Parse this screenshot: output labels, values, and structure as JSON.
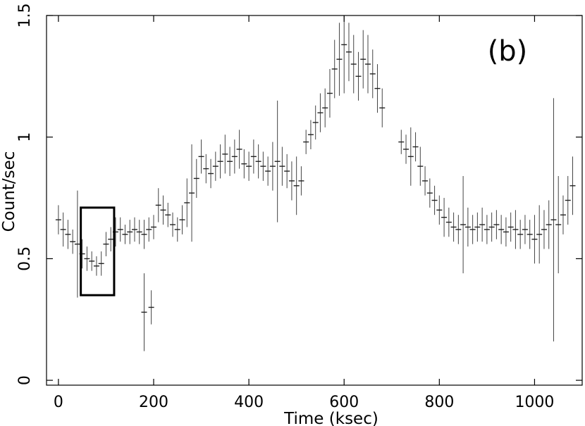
{
  "chart_data": {
    "type": "scatter",
    "xlabel": "Time (ksec)",
    "ylabel": "Count/sec",
    "panel_label": "(b)",
    "xlim": [
      -25,
      1100
    ],
    "ylim": [
      -0.02,
      1.5
    ],
    "x_ticks": [
      0,
      200,
      400,
      600,
      800,
      1000
    ],
    "x_tick_labels": [
      "0",
      "200",
      "400",
      "600",
      "800",
      "1000"
    ],
    "y_ticks": [
      0,
      0.5,
      1,
      1.5
    ],
    "y_tick_labels": [
      "0",
      "0.5",
      "1",
      "1.5"
    ],
    "grid": false,
    "legend": "none",
    "highlight_box": {
      "x": [
        47,
        117
      ],
      "y": [
        0.35,
        0.71
      ]
    },
    "series": [
      {
        "x": [
          0,
          10,
          20,
          30,
          40,
          50,
          60,
          70,
          80,
          90,
          100,
          110,
          120,
          130,
          140,
          150,
          160,
          170,
          180,
          190,
          200,
          210,
          220,
          230,
          240,
          250,
          260,
          270,
          280,
          290,
          300,
          310,
          320,
          330,
          340,
          350,
          360,
          370,
          380,
          390,
          400,
          410,
          420,
          430,
          440,
          450,
          460,
          470,
          480,
          490,
          500,
          510,
          520,
          530,
          540,
          550,
          560,
          570,
          580,
          590,
          600,
          610,
          620,
          630,
          640,
          650,
          660,
          670,
          680,
          720,
          730,
          740,
          750,
          760,
          770,
          780,
          790,
          800,
          810,
          820,
          830,
          840,
          850,
          860,
          870,
          880,
          890,
          900,
          910,
          920,
          930,
          940,
          950,
          960,
          970,
          980,
          990,
          1000,
          1010,
          1020,
          1030,
          1040,
          1050,
          1060,
          1070,
          1080,
          180,
          195
        ],
        "y": [
          0.66,
          0.62,
          0.6,
          0.57,
          0.56,
          0.52,
          0.5,
          0.49,
          0.47,
          0.48,
          0.56,
          0.58,
          0.61,
          0.62,
          0.6,
          0.61,
          0.62,
          0.61,
          0.6,
          0.62,
          0.63,
          0.72,
          0.7,
          0.68,
          0.64,
          0.62,
          0.66,
          0.73,
          0.77,
          0.83,
          0.92,
          0.87,
          0.85,
          0.88,
          0.9,
          0.93,
          0.9,
          0.92,
          0.95,
          0.89,
          0.88,
          0.92,
          0.9,
          0.88,
          0.86,
          0.88,
          0.9,
          0.88,
          0.86,
          0.82,
          0.8,
          0.82,
          0.98,
          1.01,
          1.06,
          1.1,
          1.12,
          1.18,
          1.28,
          1.32,
          1.38,
          1.35,
          1.3,
          1.25,
          1.32,
          1.3,
          1.26,
          1.2,
          1.12,
          0.98,
          0.95,
          0.92,
          0.96,
          0.88,
          0.82,
          0.77,
          0.74,
          0.7,
          0.67,
          0.65,
          0.63,
          0.62,
          0.64,
          0.63,
          0.62,
          0.63,
          0.64,
          0.62,
          0.63,
          0.64,
          0.62,
          0.61,
          0.63,
          0.62,
          0.6,
          0.62,
          0.6,
          0.58,
          0.6,
          0.62,
          0.64,
          0.66,
          0.64,
          0.68,
          0.74,
          0.8,
          0.28,
          0.3
        ],
        "yerr": [
          0.06,
          0.07,
          0.06,
          0.05,
          0.22,
          0.06,
          0.05,
          0.04,
          0.04,
          0.05,
          0.05,
          0.05,
          0.06,
          0.05,
          0.04,
          0.05,
          0.05,
          0.05,
          0.06,
          0.05,
          0.05,
          0.07,
          0.06,
          0.05,
          0.05,
          0.05,
          0.06,
          0.1,
          0.2,
          0.08,
          0.07,
          0.06,
          0.06,
          0.06,
          0.07,
          0.08,
          0.06,
          0.07,
          0.08,
          0.06,
          0.06,
          0.07,
          0.07,
          0.06,
          0.06,
          0.1,
          0.25,
          0.08,
          0.07,
          0.08,
          0.12,
          0.06,
          0.05,
          0.06,
          0.07,
          0.08,
          0.08,
          0.1,
          0.12,
          0.15,
          0.2,
          0.12,
          0.12,
          0.1,
          0.12,
          0.12,
          0.1,
          0.1,
          0.08,
          0.05,
          0.06,
          0.12,
          0.06,
          0.08,
          0.06,
          0.06,
          0.06,
          0.06,
          0.08,
          0.06,
          0.06,
          0.06,
          0.2,
          0.08,
          0.06,
          0.06,
          0.07,
          0.06,
          0.06,
          0.06,
          0.06,
          0.06,
          0.06,
          0.08,
          0.06,
          0.06,
          0.06,
          0.1,
          0.12,
          0.08,
          0.1,
          0.5,
          0.2,
          0.08,
          0.1,
          0.12,
          0.16,
          0.07
        ]
      }
    ]
  }
}
